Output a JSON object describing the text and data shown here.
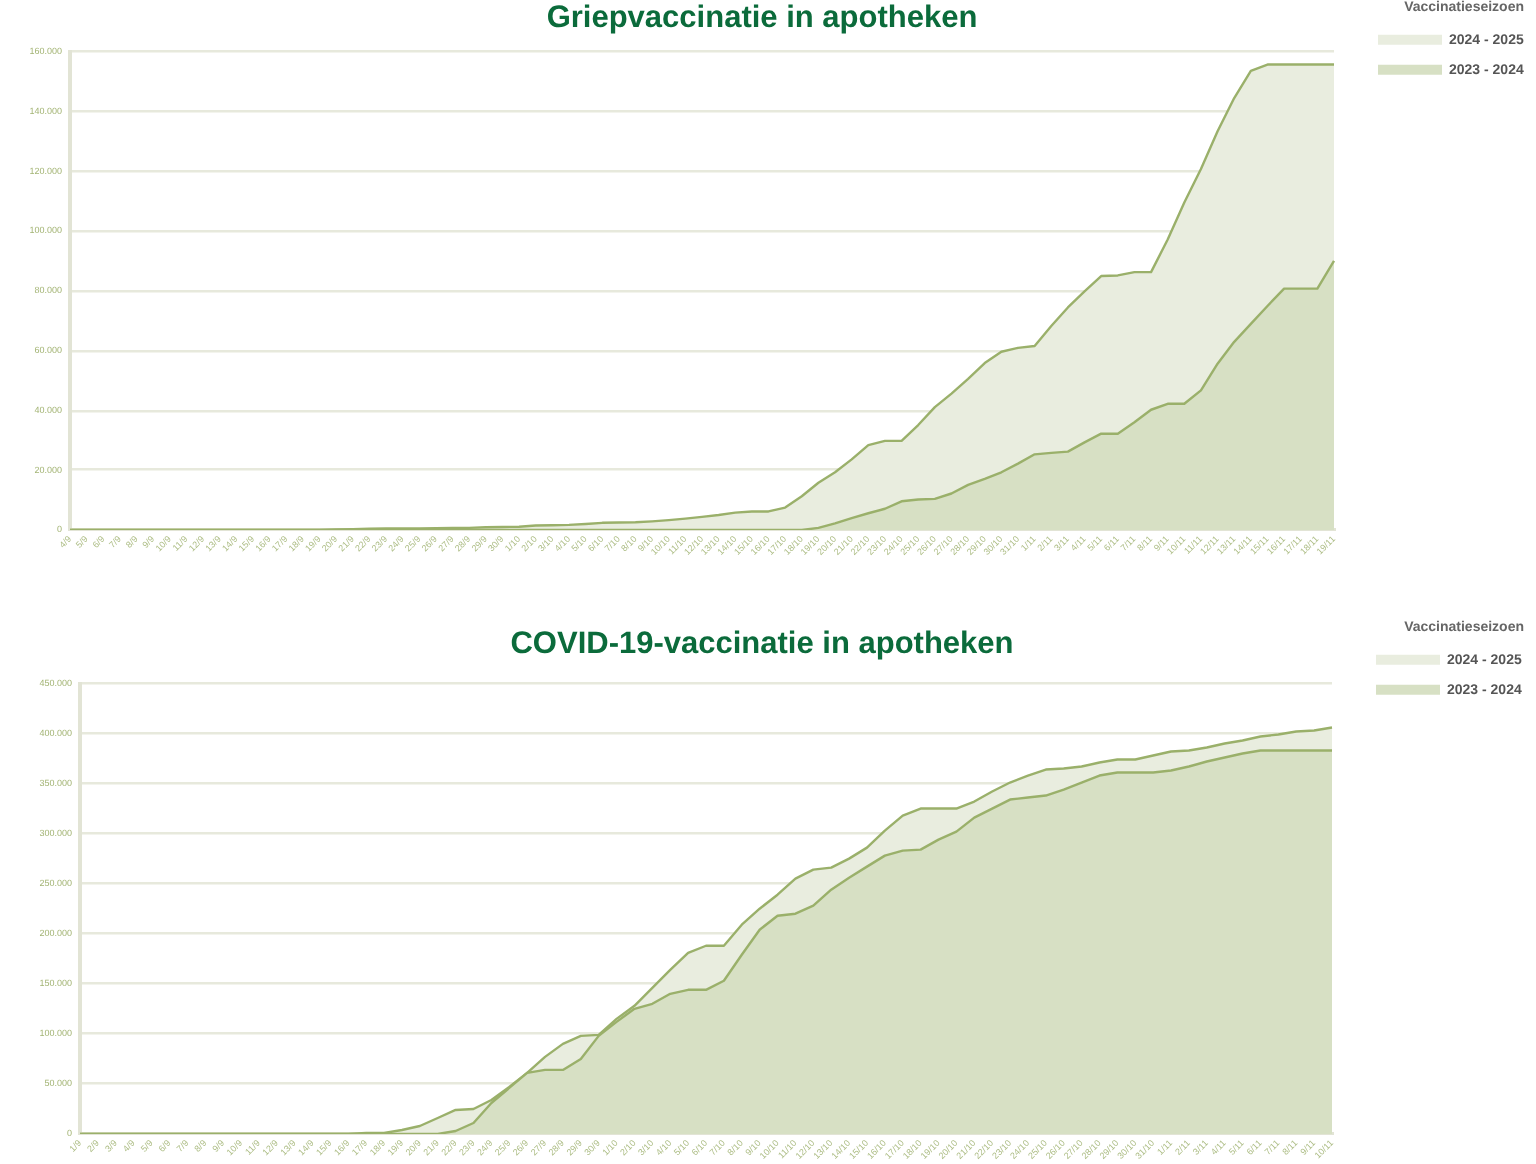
{
  "chart_data": [
    {
      "type": "area",
      "title": "Griepvaccinatie in apotheken",
      "legend_title": "Vaccinatieseizoen",
      "categories": [
        "4/9",
        "5/9",
        "6/9",
        "7/9",
        "8/9",
        "9/9",
        "10/9",
        "11/9",
        "12/9",
        "13/9",
        "14/9",
        "15/9",
        "16/9",
        "17/9",
        "18/9",
        "19/9",
        "20/9",
        "21/9",
        "22/9",
        "23/9",
        "24/9",
        "25/9",
        "26/9",
        "27/9",
        "28/9",
        "29/9",
        "30/9",
        "1/10",
        "2/10",
        "3/10",
        "4/10",
        "5/10",
        "6/10",
        "7/10",
        "8/10",
        "9/10",
        "10/10",
        "11/10",
        "12/10",
        "13/10",
        "14/10",
        "15/10",
        "16/10",
        "17/10",
        "18/10",
        "19/10",
        "20/10",
        "21/10",
        "22/10",
        "23/10",
        "24/10",
        "25/10",
        "26/10",
        "27/10",
        "28/10",
        "29/10",
        "30/10",
        "31/10",
        "1/11",
        "2/11",
        "3/11",
        "4/11",
        "5/11",
        "6/11",
        "7/11",
        "8/11",
        "9/11",
        "10/11",
        "11/11",
        "12/11",
        "13/11",
        "14/11",
        "15/11",
        "16/11",
        "17/11",
        "18/11",
        "19/11"
      ],
      "series": [
        {
          "name": "2024 - 2025",
          "color": "#e9eddf",
          "values": [
            0,
            0,
            0,
            0,
            0,
            0,
            0,
            0,
            0,
            0,
            0,
            0,
            0,
            0,
            0,
            0,
            200,
            300,
            400,
            500,
            500,
            500,
            600,
            700,
            700,
            900,
            1000,
            1100,
            1500,
            1600,
            1700,
            2000,
            2400,
            2500,
            2600,
            2900,
            3300,
            3800,
            4400,
            5000,
            5800,
            6200,
            6200,
            7500,
            11300,
            15800,
            19300,
            23600,
            28400,
            29800,
            29800,
            35100,
            41100,
            45600,
            50500,
            55800,
            59600,
            60900,
            61500,
            68200,
            74400,
            79800,
            84900,
            85100,
            86200,
            86200,
            97100,
            109500,
            120700,
            133300,
            144400,
            153500,
            155600,
            155600,
            155600,
            155600,
            155600
          ]
        },
        {
          "name": "2023 - 2024",
          "color": "#d7e0c4",
          "values": [
            0,
            0,
            0,
            0,
            0,
            0,
            0,
            0,
            0,
            0,
            0,
            0,
            0,
            0,
            0,
            0,
            0,
            0,
            0,
            0,
            0,
            0,
            0,
            0,
            0,
            0,
            0,
            0,
            0,
            0,
            0,
            0,
            0,
            0,
            0,
            0,
            0,
            0,
            0,
            0,
            0,
            0,
            0,
            0,
            0,
            700,
            2200,
            4000,
            5600,
            7100,
            9600,
            10200,
            10400,
            12200,
            15100,
            17100,
            19300,
            22200,
            25300,
            25800,
            26200,
            29300,
            32200,
            32200,
            36000,
            40200,
            42200,
            42200,
            46700,
            55600,
            62900,
            68900,
            74900,
            80700,
            80700,
            80700,
            90000
          ]
        }
      ],
      "ylim": [
        0,
        160000
      ],
      "yticks": [
        0,
        {
          "value": 20000,
          "label": "20.000"
        },
        {
          "value": 40000,
          "label": "40.000"
        },
        {
          "value": 60000,
          "label": "60.000"
        },
        {
          "value": 80000,
          "label": "80.000"
        },
        {
          "value": 100000,
          "label": "100.000"
        },
        {
          "value": 120000,
          "label": "120.000"
        },
        {
          "value": 140000,
          "label": "140.000"
        },
        {
          "value": 160000,
          "label": "160.000"
        }
      ],
      "grid": "y",
      "legend": "top right"
    },
    {
      "type": "area",
      "title": "COVID-19-vaccinatie in apotheken",
      "legend_title": "Vaccinatieseizoen",
      "categories": [
        "1/9",
        "2/9",
        "3/9",
        "4/9",
        "5/9",
        "6/9",
        "7/9",
        "8/9",
        "9/9",
        "10/9",
        "11/9",
        "12/9",
        "13/9",
        "14/9",
        "15/9",
        "16/9",
        "17/9",
        "18/9",
        "19/9",
        "20/9",
        "21/9",
        "22/9",
        "23/9",
        "24/9",
        "25/9",
        "26/9",
        "27/9",
        "28/9",
        "29/9",
        "30/9",
        "1/10",
        "2/10",
        "3/10",
        "4/10",
        "5/10",
        "6/10",
        "7/10",
        "8/10",
        "9/10",
        "10/10",
        "11/10",
        "12/10",
        "13/10",
        "14/10",
        "15/10",
        "16/10",
        "17/10",
        "18/10",
        "19/10",
        "20/10",
        "21/10",
        "22/10",
        "23/10",
        "24/10",
        "25/10",
        "26/10",
        "27/10",
        "28/10",
        "29/10",
        "30/10",
        "31/10",
        "1/11",
        "2/11",
        "3/11",
        "4/11",
        "5/11",
        "6/11",
        "7/11",
        "8/11",
        "9/11",
        "10/11"
      ],
      "series": [
        {
          "name": "2024 - 2025",
          "color": "#e9eddf",
          "values": [
            0,
            0,
            0,
            0,
            0,
            0,
            0,
            0,
            0,
            0,
            0,
            0,
            0,
            0,
            0,
            0,
            1000,
            1000,
            4000,
            8000,
            16000,
            24000,
            25000,
            34000,
            47000,
            61000,
            77000,
            90000,
            98000,
            99000,
            115000,
            128000,
            146000,
            164000,
            181000,
            188000,
            188000,
            209000,
            225000,
            239000,
            255000,
            264000,
            266000,
            275000,
            286000,
            303000,
            318000,
            325000,
            325000,
            325000,
            332000,
            342000,
            351000,
            358000,
            364000,
            365000,
            367000,
            371000,
            374000,
            374000,
            378000,
            382000,
            383000,
            386000,
            390000,
            393000,
            397000,
            399000,
            402000,
            403000,
            406000
          ]
        },
        {
          "name": "2023 - 2024",
          "color": "#d7e0c4",
          "values": [
            0,
            0,
            0,
            0,
            0,
            0,
            0,
            0,
            0,
            0,
            0,
            0,
            0,
            0,
            0,
            0,
            0,
            0,
            0,
            0,
            0,
            3000,
            11000,
            31000,
            46000,
            61000,
            64000,
            64000,
            75000,
            98000,
            112000,
            125000,
            130000,
            140000,
            144000,
            144000,
            153000,
            179000,
            204000,
            218000,
            220000,
            228000,
            244000,
            256000,
            267000,
            278000,
            283000,
            284000,
            294000,
            302000,
            316000,
            325000,
            334000,
            336000,
            338000,
            344000,
            351000,
            358000,
            361000,
            361000,
            361000,
            363000,
            367000,
            372000,
            376000,
            380000,
            383000,
            383000,
            383000,
            383000,
            383000
          ]
        }
      ],
      "ylim": [
        0,
        450000
      ],
      "yticks": [
        0,
        {
          "value": 50000,
          "label": "50.000"
        },
        {
          "value": 100000,
          "label": "100.000"
        },
        {
          "value": 150000,
          "label": "150.000"
        },
        {
          "value": 200000,
          "label": "200.000"
        },
        {
          "value": 250000,
          "label": "250.000"
        },
        {
          "value": 300000,
          "label": "300.000"
        },
        {
          "value": 350000,
          "label": "350.000"
        },
        {
          "value": 400000,
          "label": "400.000"
        },
        {
          "value": 450000,
          "label": "450.000"
        }
      ],
      "grid": "y",
      "legend": "top right"
    }
  ]
}
